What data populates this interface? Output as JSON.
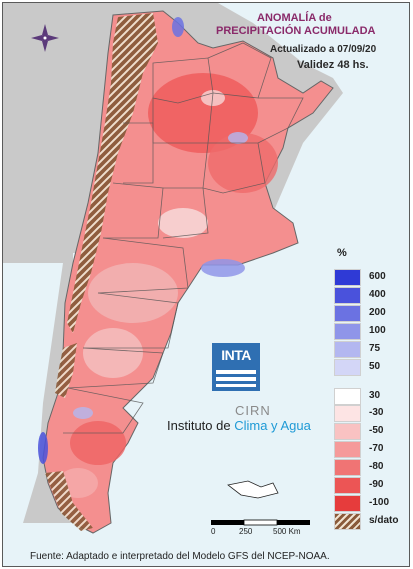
{
  "header": {
    "title_line1": "ANOMALÍA de",
    "title_line2": "PRECIPITACIÓN ACUMULADA",
    "updated": "Actualizado a 07/09/20",
    "validity": "Validez 48 hs."
  },
  "legend": {
    "unit": "%",
    "items": [
      {
        "label": "600",
        "color": "#2f3ad6"
      },
      {
        "label": "400",
        "color": "#4a52dc"
      },
      {
        "label": "200",
        "color": "#6b72e2"
      },
      {
        "label": "100",
        "color": "#8f95e9"
      },
      {
        "label": "75",
        "color": "#b3b7f0"
      },
      {
        "label": "50",
        "color": "#d3d6f7"
      },
      {
        "label": "30",
        "color": "#ffffff"
      },
      {
        "label": "-30",
        "color": "#fde4e4"
      },
      {
        "label": "-50",
        "color": "#f9c2c2"
      },
      {
        "label": "-70",
        "color": "#f59a9a"
      },
      {
        "label": "-80",
        "color": "#f07474"
      },
      {
        "label": "-90",
        "color": "#ec5555"
      },
      {
        "label": "-100",
        "color": "#e63c3c"
      }
    ],
    "nodata_label": "s/dato"
  },
  "logos": {
    "inta": "INTA",
    "cirn": "CIRN",
    "institute_prefix": "Instituto de ",
    "institute_highlight": "Clima y Agua"
  },
  "scale": {
    "ticks": [
      "0",
      "250",
      "500 Km"
    ]
  },
  "source": "Fuente: Adaptado e interpretado del Modelo GFS del NCEP-NOAA.",
  "icons": [
    "compass-rose-icon"
  ]
}
